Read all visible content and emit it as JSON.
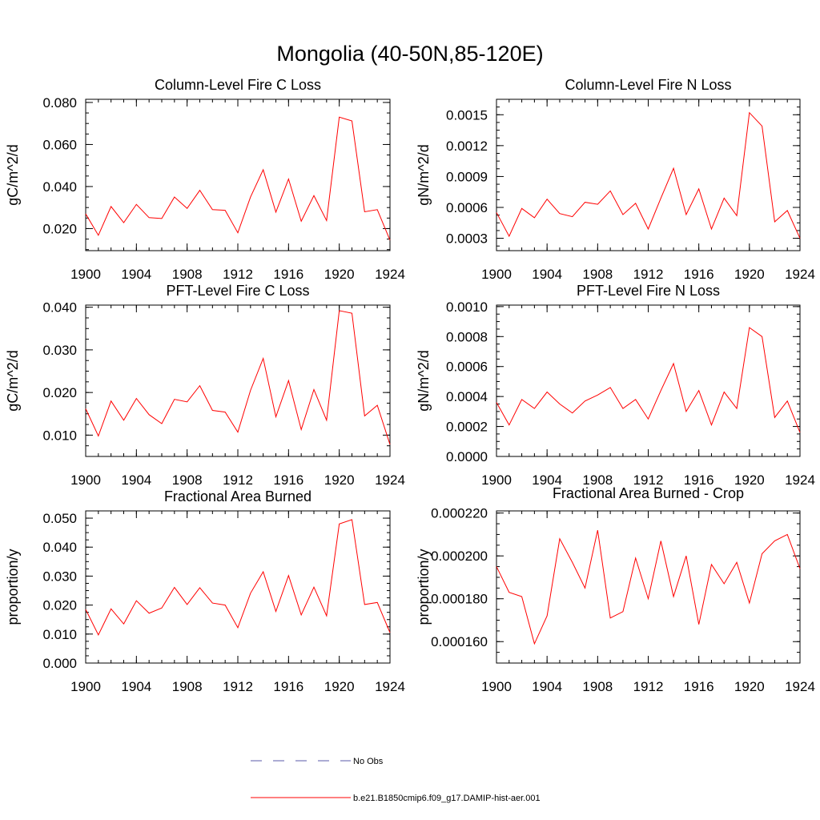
{
  "title": "Mongolia (40-50N,85-120E)",
  "colors": {
    "model_line": "#ff0000",
    "obs_line": "#5a5aa8",
    "axis": "#000000"
  },
  "legend": {
    "entries": [
      {
        "label": "No Obs",
        "style": "dashed",
        "color": "#5a5aa8"
      },
      {
        "label": "b.e21.B1850cmip6.f09_g17.DAMIP-hist-aer.001",
        "style": "solid",
        "color": "#ff0000"
      }
    ]
  },
  "chart_data": [
    {
      "type": "line",
      "title": "Column-Level Fire C Loss",
      "xlabel": "",
      "ylabel": "gC/m^2/d",
      "xlim": [
        1900,
        1924
      ],
      "ylim": [
        0.0095,
        0.0815
      ],
      "xticks": [
        1900,
        1904,
        1908,
        1912,
        1916,
        1920,
        1924
      ],
      "yticks": [
        0.02,
        0.04,
        0.06,
        0.08
      ],
      "ytick_labels": [
        "0.020",
        "0.040",
        "0.060",
        "0.080"
      ],
      "x": [
        1900,
        1901,
        1902,
        1903,
        1904,
        1905,
        1906,
        1907,
        1908,
        1909,
        1910,
        1911,
        1912,
        1913,
        1914,
        1915,
        1916,
        1917,
        1918,
        1919,
        1920,
        1921,
        1922,
        1923,
        1924
      ],
      "series": [
        {
          "name": "b.e21.B1850cmip6.f09_g17.DAMIP-hist-aer.001",
          "values": [
            0.027,
            0.0168,
            0.0305,
            0.0228,
            0.0315,
            0.0252,
            0.0248,
            0.035,
            0.0296,
            0.0382,
            0.029,
            0.0287,
            0.018,
            0.035,
            0.048,
            0.0278,
            0.0436,
            0.0235,
            0.0357,
            0.0238,
            0.073,
            0.0712,
            0.028,
            0.029,
            0.0145
          ]
        }
      ]
    },
    {
      "type": "line",
      "title": "Column-Level Fire N Loss",
      "xlabel": "",
      "ylabel": "gN/m^2/d",
      "xlim": [
        1900,
        1924
      ],
      "ylim": [
        0.00018,
        0.00165
      ],
      "xticks": [
        1900,
        1904,
        1908,
        1912,
        1916,
        1920,
        1924
      ],
      "yticks": [
        0.0003,
        0.0006,
        0.0009,
        0.0012,
        0.0015
      ],
      "ytick_labels": [
        "0.0003",
        "0.0006",
        "0.0009",
        "0.0012",
        "0.0015"
      ],
      "x": [
        1900,
        1901,
        1902,
        1903,
        1904,
        1905,
        1906,
        1907,
        1908,
        1909,
        1910,
        1911,
        1912,
        1913,
        1914,
        1915,
        1916,
        1917,
        1918,
        1919,
        1920,
        1921,
        1922,
        1923,
        1924
      ],
      "series": [
        {
          "name": "b.e21.B1850cmip6.f09_g17.DAMIP-hist-aer.001",
          "values": [
            0.00055,
            0.00032,
            0.00059,
            0.0005,
            0.00068,
            0.00054,
            0.00051,
            0.00065,
            0.00063,
            0.00076,
            0.00053,
            0.00064,
            0.00039,
            0.00069,
            0.00098,
            0.00053,
            0.00078,
            0.00039,
            0.00069,
            0.00052,
            0.00152,
            0.00139,
            0.00046,
            0.00057,
            0.0003
          ]
        }
      ]
    },
    {
      "type": "line",
      "title": "PFT-Level Fire C Loss",
      "xlabel": "",
      "ylabel": "gC/m^2/d",
      "xlim": [
        1900,
        1924
      ],
      "ylim": [
        0.005,
        0.0405
      ],
      "xticks": [
        1900,
        1904,
        1908,
        1912,
        1916,
        1920,
        1924
      ],
      "yticks": [
        0.01,
        0.02,
        0.03,
        0.04
      ],
      "ytick_labels": [
        "0.010",
        "0.020",
        "0.030",
        "0.040"
      ],
      "x": [
        1900,
        1901,
        1902,
        1903,
        1904,
        1905,
        1906,
        1907,
        1908,
        1909,
        1910,
        1911,
        1912,
        1913,
        1914,
        1915,
        1916,
        1917,
        1918,
        1919,
        1920,
        1921,
        1922,
        1923,
        1924
      ],
      "series": [
        {
          "name": "b.e21.B1850cmip6.f09_g17.DAMIP-hist-aer.001",
          "values": [
            0.0162,
            0.0098,
            0.018,
            0.0135,
            0.0186,
            0.0148,
            0.0127,
            0.0184,
            0.0178,
            0.0216,
            0.0158,
            0.0154,
            0.0107,
            0.0205,
            0.028,
            0.0143,
            0.0228,
            0.0113,
            0.0207,
            0.0135,
            0.0392,
            0.0386,
            0.0145,
            0.017,
            0.0078
          ]
        }
      ]
    },
    {
      "type": "line",
      "title": "PFT-Level Fire N Loss",
      "xlabel": "",
      "ylabel": "gN/m^2/d",
      "xlim": [
        1900,
        1924
      ],
      "ylim": [
        0,
        0.00101
      ],
      "xticks": [
        1900,
        1904,
        1908,
        1912,
        1916,
        1920,
        1924
      ],
      "yticks": [
        0,
        0.0002,
        0.0004,
        0.0006,
        0.0008,
        0.001
      ],
      "ytick_labels": [
        "0.0000",
        "0.0002",
        "0.0004",
        "0.0006",
        "0.0008",
        "0.0010"
      ],
      "x": [
        1900,
        1901,
        1902,
        1903,
        1904,
        1905,
        1906,
        1907,
        1908,
        1909,
        1910,
        1911,
        1912,
        1913,
        1914,
        1915,
        1916,
        1917,
        1918,
        1919,
        1920,
        1921,
        1922,
        1923,
        1924
      ],
      "series": [
        {
          "name": "b.e21.B1850cmip6.f09_g17.DAMIP-hist-aer.001",
          "values": [
            0.00036,
            0.00021,
            0.00038,
            0.00032,
            0.00043,
            0.00035,
            0.00029,
            0.00037,
            0.00041,
            0.00046,
            0.00032,
            0.00038,
            0.00025,
            0.00044,
            0.00062,
            0.0003,
            0.00044,
            0.00021,
            0.00043,
            0.00032,
            0.00086,
            0.0008,
            0.00026,
            0.00037,
            0.00016
          ]
        }
      ]
    },
    {
      "type": "line",
      "title": "Fractional Area Burned",
      "xlabel": "",
      "ylabel": "proportion/y",
      "xlim": [
        1900,
        1924
      ],
      "ylim": [
        0,
        0.0525
      ],
      "xticks": [
        1900,
        1904,
        1908,
        1912,
        1916,
        1920,
        1924
      ],
      "yticks": [
        0,
        0.01,
        0.02,
        0.03,
        0.04,
        0.05
      ],
      "ytick_labels": [
        "0.000",
        "0.010",
        "0.020",
        "0.030",
        "0.040",
        "0.050"
      ],
      "x": [
        1900,
        1901,
        1902,
        1903,
        1904,
        1905,
        1906,
        1907,
        1908,
        1909,
        1910,
        1911,
        1912,
        1913,
        1914,
        1915,
        1916,
        1917,
        1918,
        1919,
        1920,
        1921,
        1922,
        1923,
        1924
      ],
      "series": [
        {
          "name": "b.e21.B1850cmip6.f09_g17.DAMIP-hist-aer.001",
          "values": [
            0.0185,
            0.0097,
            0.0187,
            0.0135,
            0.0215,
            0.0172,
            0.019,
            0.0261,
            0.0202,
            0.026,
            0.0207,
            0.02,
            0.0122,
            0.0241,
            0.0315,
            0.0178,
            0.0302,
            0.0166,
            0.0262,
            0.0163,
            0.048,
            0.0495,
            0.0202,
            0.0209,
            0.0105
          ]
        }
      ]
    },
    {
      "type": "line",
      "title": "Fractional Area Burned - Crop",
      "xlabel": "",
      "ylabel": "proportion/y",
      "xlim": [
        1900,
        1924
      ],
      "ylim": [
        0.00015,
        0.000221
      ],
      "xticks": [
        1900,
        1904,
        1908,
        1912,
        1916,
        1920,
        1924
      ],
      "yticks": [
        0.00016,
        0.00018,
        0.0002,
        0.00022
      ],
      "ytick_labels": [
        "0.000160",
        "0.000180",
        "0.000200",
        "0.000220"
      ],
      "x": [
        1900,
        1901,
        1902,
        1903,
        1904,
        1905,
        1906,
        1907,
        1908,
        1909,
        1910,
        1911,
        1912,
        1913,
        1914,
        1915,
        1916,
        1917,
        1918,
        1919,
        1920,
        1921,
        1922,
        1923,
        1924
      ],
      "series": [
        {
          "name": "b.e21.B1850cmip6.f09_g17.DAMIP-hist-aer.001",
          "values": [
            0.000195,
            0.000183,
            0.000181,
            0.000159,
            0.000172,
            0.000208,
            0.000197,
            0.000185,
            0.000212,
            0.000171,
            0.000174,
            0.000199,
            0.00018,
            0.000207,
            0.000181,
            0.0002,
            0.000168,
            0.000196,
            0.000187,
            0.000197,
            0.000178,
            0.000201,
            0.000207,
            0.00021,
            0.000194
          ]
        }
      ]
    }
  ]
}
